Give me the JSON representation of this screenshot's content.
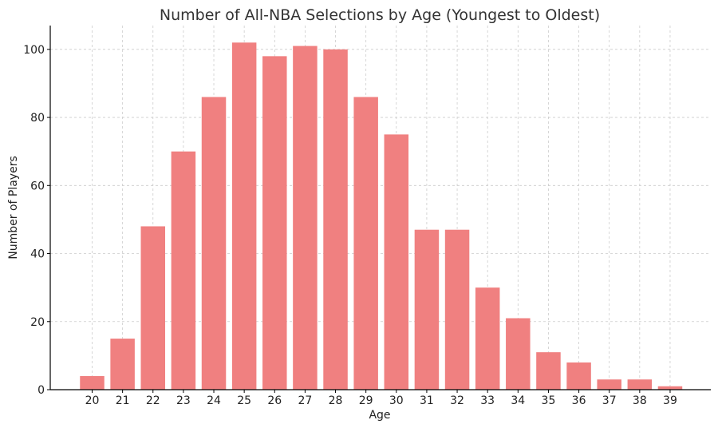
{
  "chart_data": {
    "type": "bar",
    "title": "Number of All-NBA Selections by Age (Youngest to Oldest)",
    "xlabel": "Age",
    "ylabel": "Number of Players",
    "categories": [
      "20",
      "21",
      "22",
      "23",
      "24",
      "25",
      "26",
      "27",
      "28",
      "29",
      "30",
      "31",
      "32",
      "33",
      "34",
      "35",
      "36",
      "37",
      "38",
      "39"
    ],
    "values": [
      4,
      15,
      48,
      70,
      86,
      102,
      98,
      101,
      100,
      86,
      75,
      47,
      47,
      30,
      21,
      11,
      8,
      3,
      3,
      1
    ],
    "ylim": [
      0,
      107
    ],
    "yticks": [
      "0",
      "20",
      "40",
      "60",
      "80",
      "100"
    ],
    "grid": true,
    "bar_color": "#f08080"
  }
}
